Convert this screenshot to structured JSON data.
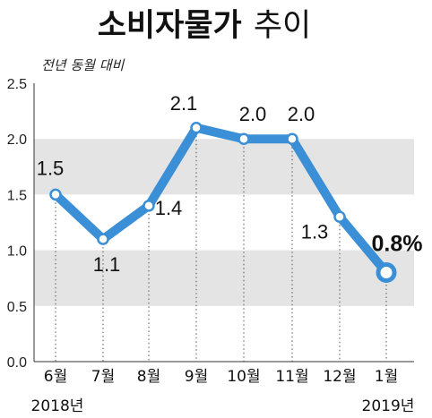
{
  "title": {
    "main": "소비자물가",
    "sub": "추이"
  },
  "unit_note": "전년 동월 대비",
  "colors": {
    "line": "#3b8fd6",
    "band": "#e4e4e4",
    "marker_fill": "#ffffff",
    "axis": "#333333"
  },
  "chart_data": {
    "type": "line",
    "categories": [
      "6월",
      "7월",
      "8월",
      "9월",
      "10월",
      "11월",
      "12월",
      "1월"
    ],
    "values": [
      1.5,
      1.1,
      1.4,
      2.1,
      2.0,
      2.0,
      1.3,
      0.8
    ],
    "data_labels": [
      "1.5",
      "1.1",
      "1.4",
      "2.1",
      "2.0",
      "2.0",
      "1.3",
      "0.8%"
    ],
    "year_labels": [
      {
        "index": 0,
        "text": "2018년"
      },
      {
        "index": 7,
        "text": "2019년"
      }
    ],
    "ylim": [
      0,
      2.5
    ],
    "yticks": [
      "0.0",
      "0.5",
      "1.0",
      "1.5",
      "2.0",
      "2.5"
    ],
    "grid": "alternating horizontal bands",
    "legend": "none"
  }
}
